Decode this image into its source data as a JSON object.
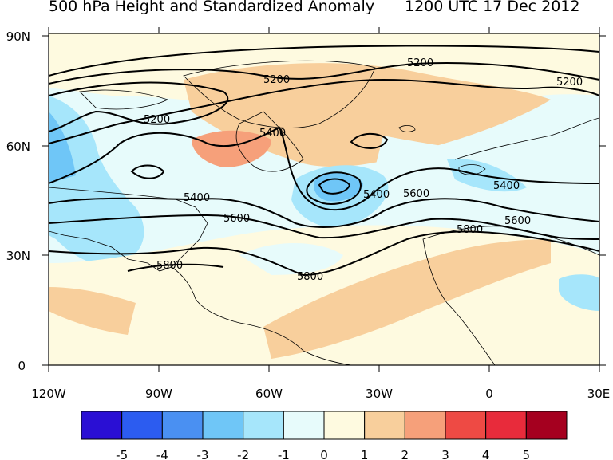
{
  "title_left": "500 hPa Height and Standardized Anomaly",
  "title_right": "1200 UTC 17 Dec 2012",
  "axes": {
    "lon_labels": [
      "120W",
      "90W",
      "60W",
      "30W",
      "0",
      "30E"
    ],
    "lat_labels": [
      "90N",
      "60N",
      "30N",
      "0"
    ]
  },
  "contour_labels": [
    {
      "text": "5200",
      "id": "label-5200-a"
    },
    {
      "text": "5200",
      "id": "label-5200-b"
    },
    {
      "text": "5200",
      "id": "label-5200-c"
    },
    {
      "text": "5200",
      "id": "label-5200-d"
    },
    {
      "text": "5400",
      "id": "label-5400-a"
    },
    {
      "text": "5400",
      "id": "label-5400-b"
    },
    {
      "text": "5400",
      "id": "label-5400-c"
    },
    {
      "text": "5400",
      "id": "label-5400-d"
    },
    {
      "text": "5600",
      "id": "label-5600-a"
    },
    {
      "text": "5600",
      "id": "label-5600-b"
    },
    {
      "text": "5600",
      "id": "label-5600-c"
    },
    {
      "text": "5800",
      "id": "label-5800-a"
    },
    {
      "text": "5800",
      "id": "label-5800-b"
    },
    {
      "text": "5800",
      "id": "label-5800-c"
    }
  ],
  "colorbar": {
    "labels": [
      "-5",
      "-4",
      "-3",
      "-2",
      "-1",
      "0",
      "1",
      "2",
      "3",
      "4",
      "5"
    ],
    "colors": [
      "#2a0fd4",
      "#2c5cf0",
      "#4a90f2",
      "#6fc6f7",
      "#a6e6fb",
      "#e7fbfb",
      "#fefae0",
      "#f8cf9c",
      "#f6a07a",
      "#ee4a44",
      "#e82b3b",
      "#a5001f"
    ]
  },
  "colors": {
    "weak_neg": "#a6e6fb",
    "weak_pos": "#f8cf9c",
    "neutral_neg": "#e7fbfb",
    "neutral_pos": "#fefae0",
    "moderate_pos": "#f6a07a"
  }
}
